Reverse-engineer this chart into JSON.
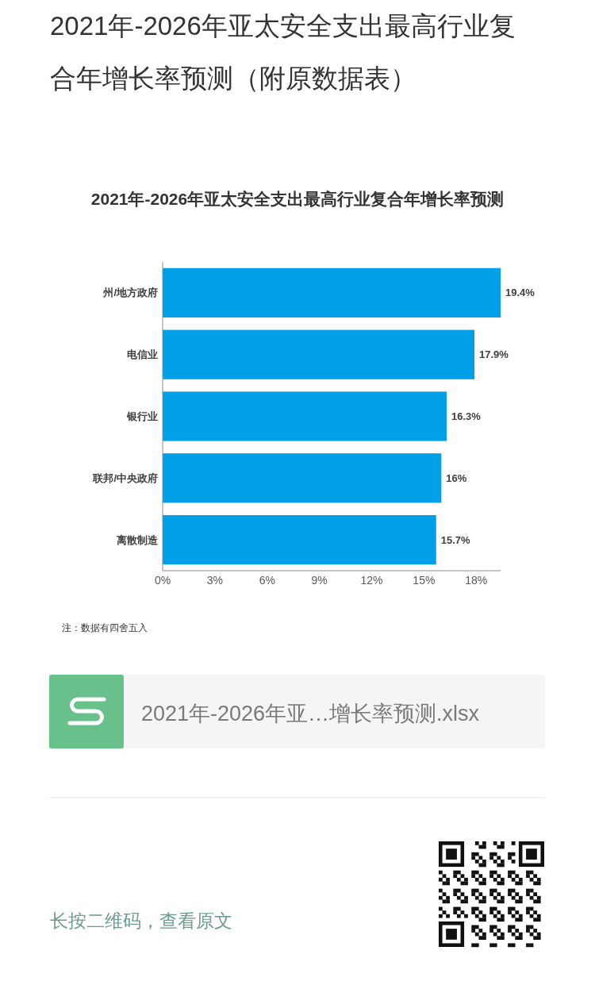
{
  "chart_data": {
    "type": "bar",
    "orientation": "horizontal",
    "title": "2021年-2026年亚太安全支出最高行业复合年增长率预测（附原数据表）",
    "subtitle": "2021年-2026年亚太安全支出最高行业复合年增长率预测",
    "categories": [
      "州/地方政府",
      "电信业",
      "银行业",
      "联邦/中央政府",
      "离散制造"
    ],
    "values": [
      19.4,
      17.9,
      16.3,
      16,
      15.7
    ],
    "value_labels": [
      "19.4%",
      "17.9%",
      "16.3%",
      "16%",
      "15.7%"
    ],
    "color": "#00a0e9",
    "xlim": [
      0,
      19.4
    ],
    "xticks": [
      {
        "value": 0,
        "label": "0%"
      },
      {
        "value": 3,
        "label": "3%"
      },
      {
        "value": 6,
        "label": "6%"
      },
      {
        "value": 9,
        "label": "9%"
      },
      {
        "value": 12,
        "label": "12%"
      },
      {
        "value": 15,
        "label": "15%"
      },
      {
        "value": 18,
        "label": "18%"
      }
    ],
    "annotations": [
      "注：数据有四舍五入",
      "2021年-2026年亚…增长率预测.xlsx",
      "长按二维码，查看原文"
    ]
  }
}
